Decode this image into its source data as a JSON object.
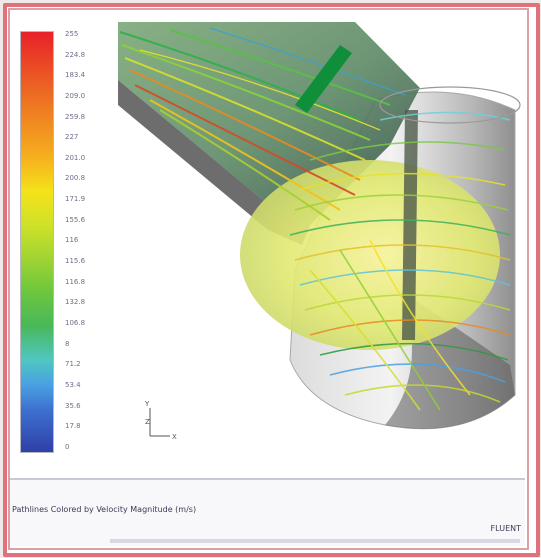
{
  "legend": {
    "labels": [
      "255",
      "224.8",
      "183.4",
      "209.0",
      "259.8",
      "227",
      "201.0",
      "200.8",
      "171.9",
      "155.6",
      "116",
      "115.6",
      "116.8",
      "132.8",
      "106.8",
      "8",
      "71.2",
      "53.4",
      "35.6",
      "17.8",
      "0"
    ],
    "colors": {
      "top": "#e8202a",
      "upper": "#f6b01e",
      "middle": "#cfe128",
      "lower_mid": "#49b85a",
      "lower": "#4aa0e2",
      "bottom": "#2f3fa8"
    }
  },
  "axis_triad": {
    "y_label": "Y",
    "z_label": "Z",
    "x_label": "X"
  },
  "caption": {
    "text": "Pathlines Colored by Velocity Magnitude (m/s)",
    "right_text": "FLUENT"
  }
}
